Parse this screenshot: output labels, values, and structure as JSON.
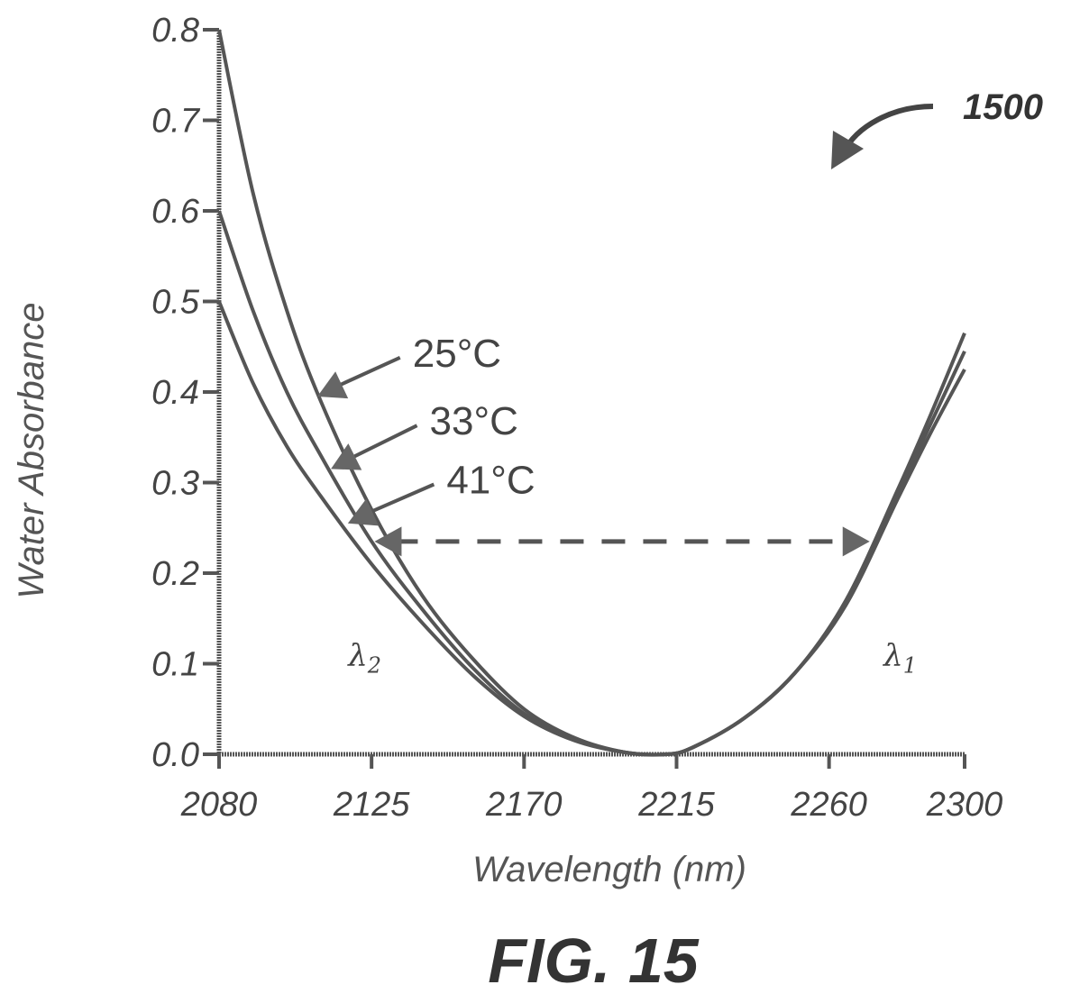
{
  "figure": {
    "reference_numeral": "1500",
    "caption": "FIG. 15"
  },
  "chart_data": {
    "type": "line",
    "title": "",
    "xlabel": "Wavelength (nm)",
    "ylabel": "Water Absorbance",
    "xlim": [
      2080,
      2300
    ],
    "ylim": [
      0.0,
      0.8
    ],
    "x_ticks": [
      "2080",
      "2125",
      "2170",
      "2215",
      "2260",
      "2300"
    ],
    "y_ticks": [
      "0.0",
      "0.1",
      "0.2",
      "0.3",
      "0.4",
      "0.5",
      "0.6",
      "0.7",
      "0.8"
    ],
    "grid": false,
    "series": [
      {
        "name": "25°C",
        "x": [
          2080,
          2090,
          2100,
          2110,
          2125,
          2140,
          2155,
          2170,
          2185,
          2200,
          2212,
          2220,
          2235,
          2250,
          2265,
          2280,
          2290,
          2300
        ],
        "y": [
          0.8,
          0.62,
          0.49,
          0.39,
          0.27,
          0.175,
          0.105,
          0.05,
          0.018,
          0.002,
          0.0,
          0.008,
          0.04,
          0.09,
          0.17,
          0.29,
          0.375,
          0.465
        ]
      },
      {
        "name": "33°C",
        "x": [
          2080,
          2090,
          2100,
          2110,
          2125,
          2140,
          2155,
          2170,
          2185,
          2200,
          2212,
          2220,
          2235,
          2250,
          2265,
          2280,
          2290,
          2300
        ],
        "y": [
          0.6,
          0.49,
          0.4,
          0.33,
          0.235,
          0.16,
          0.095,
          0.045,
          0.016,
          0.002,
          0.0,
          0.008,
          0.04,
          0.09,
          0.168,
          0.285,
          0.365,
          0.445
        ]
      },
      {
        "name": "41°C",
        "x": [
          2080,
          2090,
          2100,
          2110,
          2125,
          2140,
          2155,
          2170,
          2185,
          2200,
          2212,
          2220,
          2235,
          2250,
          2265,
          2280,
          2290,
          2300
        ],
        "y": [
          0.5,
          0.41,
          0.34,
          0.285,
          0.21,
          0.145,
          0.087,
          0.042,
          0.015,
          0.002,
          0.0,
          0.008,
          0.04,
          0.09,
          0.165,
          0.28,
          0.355,
          0.425
        ]
      }
    ],
    "annotations": [
      {
        "text": "λ2",
        "x": 2123,
        "y": 0.1
      },
      {
        "text": "λ1",
        "x": 2281,
        "y": 0.1
      }
    ],
    "dashed_arrow": {
      "from": [
        2128,
        0.235
      ],
      "to": [
        2272,
        0.235
      ]
    },
    "label_arrows": [
      {
        "label": "25°C",
        "label_at": [
          2135,
          0.44
        ],
        "tip": [
          2109,
          0.395
        ]
      },
      {
        "label": "33°C",
        "label_at": [
          2140,
          0.365
        ],
        "tip": [
          2113,
          0.315
        ]
      },
      {
        "label": "41°C",
        "label_at": [
          2145,
          0.3
        ],
        "tip": [
          2118,
          0.255
        ]
      }
    ]
  }
}
